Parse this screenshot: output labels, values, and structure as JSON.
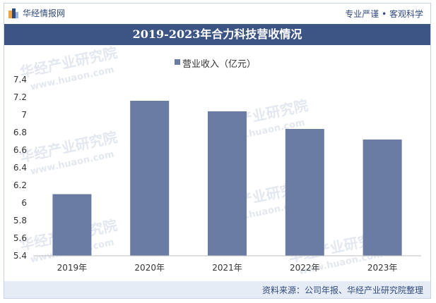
{
  "header": {
    "logo_text": "华经情报网",
    "slogan": "专业严谨 • 客观科学"
  },
  "title": "2019-2023年合力科技营收情况",
  "footer": {
    "source": "资料来源：公司年报、华经产业研究院整理"
  },
  "watermark": {
    "text_cn": "华经产业研究院",
    "text_en": "www.huaon.com"
  },
  "colors": {
    "bar": "#6a7ca3",
    "title_bg": "#3d5585",
    "brand": "#2f4a7c"
  },
  "chart_data": {
    "type": "bar",
    "title": "2019-2023年合力科技营收情况",
    "categories": [
      "2019年",
      "2020年",
      "2021年",
      "2022年",
      "2023年"
    ],
    "series": [
      {
        "name": "营业收入（亿元）",
        "values": [
          6.1,
          7.16,
          7.04,
          6.84,
          6.72
        ]
      }
    ],
    "ylim": [
      5.4,
      7.4
    ],
    "yticks": [
      "5.4",
      "5.6",
      "5.8",
      "6",
      "6.2",
      "6.4",
      "6.6",
      "6.8",
      "7",
      "7.2",
      "7.4"
    ],
    "grid": false,
    "legend_position": "top-center"
  }
}
